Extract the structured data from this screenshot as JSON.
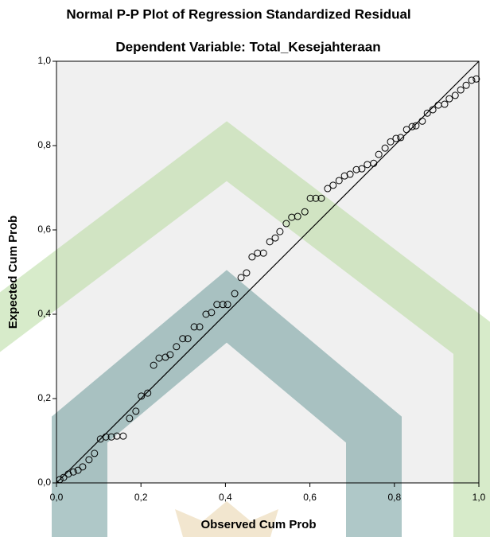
{
  "chart_data": {
    "type": "scatter",
    "title": "Normal P-P Plot of Regression Standardized Residual",
    "subtitle": "Dependent Variable: Total_Kesejahteraan",
    "x_label": "Observed Cum Prob",
    "y_label": "Expected Cum Prob",
    "xlim": [
      0,
      1
    ],
    "ylim": [
      0,
      1
    ],
    "xticks": [
      {
        "value": 0,
        "label": "0,0"
      },
      {
        "value": 0.2,
        "label": "0,2"
      },
      {
        "value": 0.4,
        "label": "0,4"
      },
      {
        "value": 0.6,
        "label": "0,6"
      },
      {
        "value": 0.8,
        "label": "0,8"
      },
      {
        "value": 1,
        "label": "1,0"
      }
    ],
    "yticks": [
      {
        "value": 0,
        "label": "0,0"
      },
      {
        "value": 0.2,
        "label": "0,2"
      },
      {
        "value": 0.4,
        "label": "0,4"
      },
      {
        "value": 0.6,
        "label": "0,6"
      },
      {
        "value": 0.8,
        "label": "0,8"
      },
      {
        "value": 1,
        "label": "1,0"
      }
    ],
    "color": "#000000",
    "x": [
      0.008,
      0.017,
      0.028,
      0.04,
      0.051,
      0.062,
      0.077,
      0.09,
      0.104,
      0.117,
      0.13,
      0.143,
      0.158,
      0.173,
      0.188,
      0.201,
      0.216,
      0.23,
      0.243,
      0.258,
      0.269,
      0.284,
      0.299,
      0.311,
      0.326,
      0.339,
      0.354,
      0.367,
      0.38,
      0.394,
      0.405,
      0.422,
      0.437,
      0.45,
      0.463,
      0.476,
      0.49,
      0.505,
      0.518,
      0.529,
      0.544,
      0.557,
      0.571,
      0.588,
      0.601,
      0.614,
      0.627,
      0.642,
      0.655,
      0.669,
      0.682,
      0.695,
      0.71,
      0.723,
      0.736,
      0.751,
      0.763,
      0.778,
      0.791,
      0.804,
      0.815,
      0.829,
      0.842,
      0.851,
      0.866,
      0.878,
      0.891,
      0.904,
      0.919,
      0.93,
      0.944,
      0.957,
      0.97,
      0.983,
      0.994
    ],
    "values": [
      0.008,
      0.013,
      0.021,
      0.026,
      0.03,
      0.038,
      0.055,
      0.07,
      0.104,
      0.109,
      0.109,
      0.111,
      0.111,
      0.153,
      0.17,
      0.206,
      0.213,
      0.279,
      0.296,
      0.298,
      0.304,
      0.323,
      0.342,
      0.342,
      0.37,
      0.37,
      0.4,
      0.404,
      0.423,
      0.423,
      0.423,
      0.449,
      0.487,
      0.498,
      0.536,
      0.545,
      0.545,
      0.572,
      0.581,
      0.596,
      0.615,
      0.63,
      0.632,
      0.643,
      0.675,
      0.675,
      0.675,
      0.698,
      0.706,
      0.717,
      0.728,
      0.732,
      0.743,
      0.745,
      0.755,
      0.758,
      0.779,
      0.794,
      0.809,
      0.817,
      0.819,
      0.838,
      0.845,
      0.847,
      0.858,
      0.877,
      0.885,
      0.896,
      0.898,
      0.911,
      0.919,
      0.932,
      0.943,
      0.955,
      0.958
    ]
  }
}
